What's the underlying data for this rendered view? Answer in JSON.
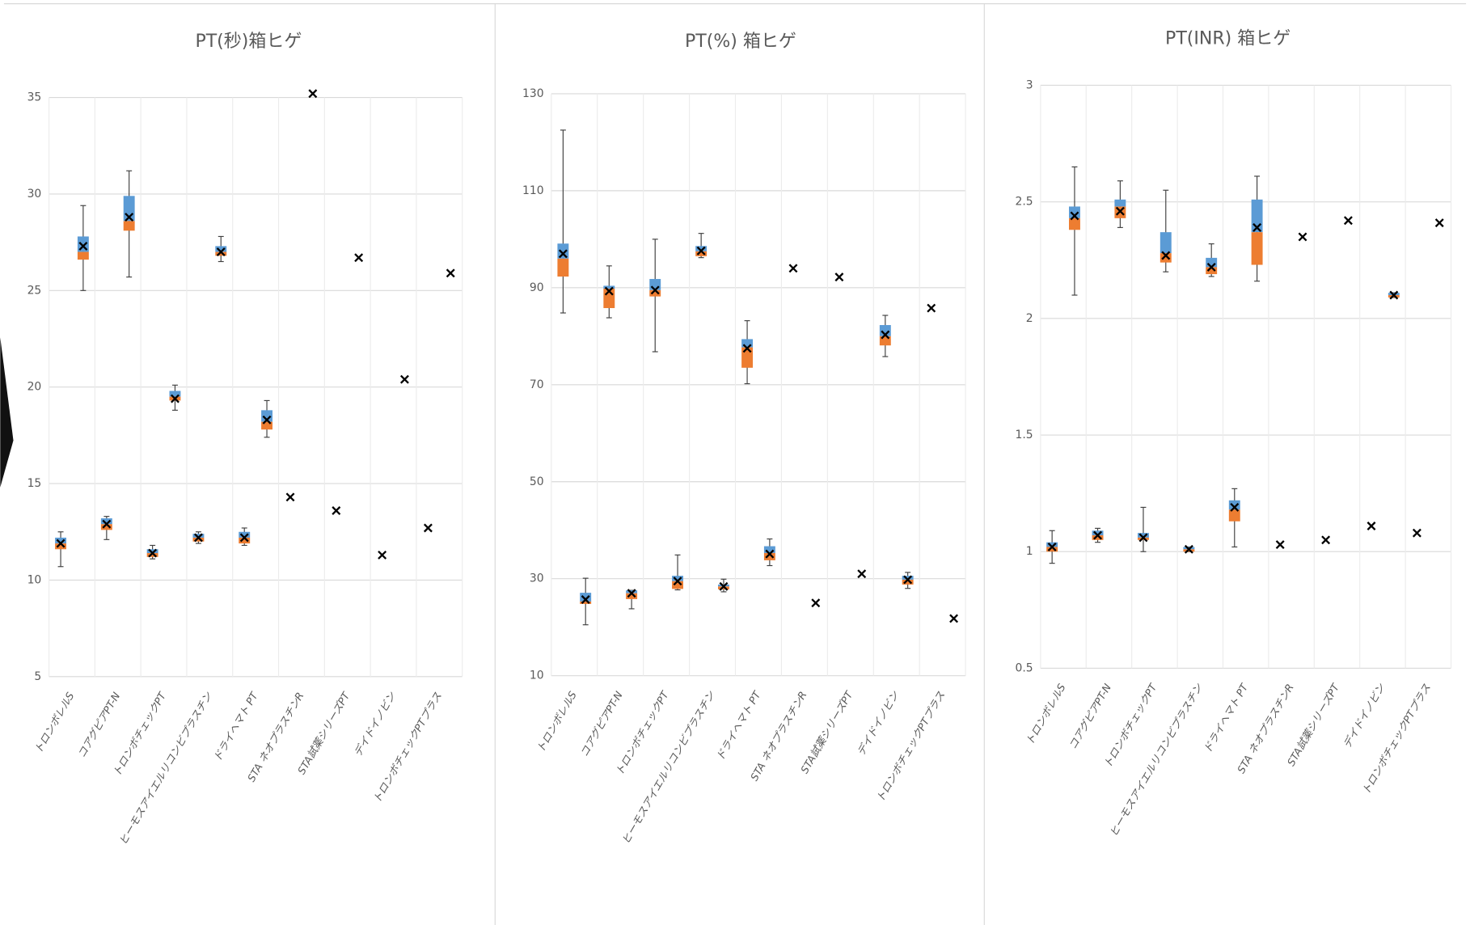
{
  "chart_data": [
    {
      "type": "box",
      "title": "PT(秒)箱ヒゲ",
      "grid": true,
      "upper_color": "#5b9bd5",
      "lower_color": "#ed7d31",
      "whisker_color": "#404040",
      "mean_color": "#000000",
      "categories": [
        "トロンボレルS",
        "コアグピアPT-N",
        "トロンボチェックPT",
        "ヒーモスアイエルリコンビプラスチン",
        "ドライヘマト PT",
        "STA ネオプラスチンR",
        "STA試薬シリーズPT",
        "デイドイノビン",
        "トロンボチェックPTプラス"
      ],
      "ylim": [
        5,
        35
      ],
      "yticks": [
        5,
        10,
        15,
        20,
        25,
        30,
        35
      ],
      "series": [
        {
          "max": [
            12.5,
            13.3,
            11.8,
            12.5,
            12.7,
            null,
            null,
            null,
            null
          ],
          "q3": [
            12.2,
            13.2,
            11.6,
            12.4,
            12.5,
            null,
            null,
            null,
            null
          ],
          "median": [
            11.9,
            12.9,
            11.4,
            12.2,
            12.2,
            null,
            null,
            null,
            null
          ],
          "q1": [
            11.6,
            12.6,
            11.2,
            12.0,
            11.9,
            null,
            null,
            null,
            null
          ],
          "min": [
            10.7,
            12.1,
            11.1,
            11.9,
            11.8,
            null,
            null,
            null,
            null
          ],
          "mean": [
            11.9,
            12.9,
            11.4,
            12.2,
            12.2,
            14.3,
            13.6,
            11.3,
            12.7
          ]
        },
        {
          "max": [
            29.4,
            31.2,
            20.1,
            27.8,
            19.3,
            null,
            null,
            null,
            null
          ],
          "q3": [
            27.8,
            29.9,
            19.8,
            27.3,
            18.8,
            null,
            null,
            null,
            null
          ],
          "median": [
            27.0,
            28.6,
            19.5,
            27.0,
            18.2,
            null,
            null,
            null,
            null
          ],
          "q1": [
            26.6,
            28.1,
            19.3,
            26.8,
            17.8,
            null,
            null,
            null,
            null
          ],
          "min": [
            25.0,
            25.7,
            18.8,
            26.5,
            17.4,
            null,
            null,
            null,
            null
          ],
          "mean": [
            27.3,
            28.8,
            19.4,
            27.0,
            18.3,
            35.2,
            26.7,
            20.4,
            25.9
          ]
        }
      ]
    },
    {
      "type": "box",
      "title": "PT(%)  箱ヒゲ",
      "grid": true,
      "upper_color": "#5b9bd5",
      "lower_color": "#ed7d31",
      "whisker_color": "#404040",
      "mean_color": "#000000",
      "categories": [
        "トロンボレルS",
        "コアグピアPT-N",
        "トロンボチェックPT",
        "ヒーモスアイエルリコンビプラスチン",
        "ドライヘマト PT",
        "STA ネオプラスチンR",
        "STA試薬シリーズPT",
        "デイドイノビン",
        "トロンボチェックPTプラス"
      ],
      "ylim": [
        10,
        130
      ],
      "yticks": [
        10,
        30,
        50,
        70,
        90,
        110,
        130
      ],
      "series": [
        {
          "max": [
            122.5,
            94.5,
            100,
            101.2,
            83.2,
            null,
            null,
            84.3,
            null
          ],
          "q3": [
            99.1,
            90.4,
            91.8,
            98.6,
            79.4,
            null,
            null,
            82.3,
            null
          ],
          "median": [
            96,
            89.8,
            89.5,
            97.5,
            77.7,
            null,
            null,
            80,
            null
          ],
          "q1": [
            92.3,
            85.8,
            88.2,
            96.5,
            73.5,
            null,
            null,
            78.1,
            null
          ],
          "min": [
            84.8,
            83.8,
            76.8,
            96.2,
            70.2,
            null,
            null,
            75.8,
            null
          ],
          "mean": [
            97,
            89.3,
            89.5,
            97.6,
            77.5,
            94,
            92.2,
            80.3,
            85.8
          ]
        },
        {
          "max": [
            30.1,
            27.6,
            34.9,
            29.9,
            38.2,
            null,
            null,
            31.3,
            null
          ],
          "q3": [
            27.1,
            27.6,
            30.6,
            28.8,
            36.7,
            null,
            null,
            30.6,
            null
          ],
          "median": [
            25.3,
            27,
            29.5,
            28.4,
            35.3,
            null,
            null,
            29.8,
            null
          ],
          "q1": [
            24.8,
            25.8,
            27.9,
            27.8,
            33.8,
            null,
            null,
            28.8,
            null
          ],
          "min": [
            20.5,
            23.8,
            27.7,
            27.3,
            32.7,
            null,
            null,
            28.0,
            null
          ],
          "mean": [
            25.7,
            27.0,
            29.5,
            28.4,
            35.1,
            25.0,
            31.0,
            29.8,
            21.8
          ]
        }
      ]
    },
    {
      "type": "box",
      "title": "PT(INR)  箱ヒゲ",
      "grid": true,
      "upper_color": "#5b9bd5",
      "lower_color": "#ed7d31",
      "whisker_color": "#404040",
      "mean_color": "#000000",
      "categories": [
        "トロンボレルS",
        "コアグピアPT-N",
        "トロンボチェックPT",
        "ヒーモスアイエルリコンビプラスチン",
        "ドライヘマト PT",
        "STA ネオプラスチンR",
        "STA試薬シリーズPT",
        "デイドイノビン",
        "トロンボチェックPTプラス"
      ],
      "ylim": [
        0.5,
        3
      ],
      "yticks": [
        0.5,
        1,
        1.5,
        2,
        2.5,
        3
      ],
      "series": [
        {
          "max": [
            1.09,
            1.1,
            1.19,
            1.02,
            1.27,
            null,
            null,
            null,
            null
          ],
          "q3": [
            1.04,
            1.09,
            1.08,
            1.02,
            1.22,
            null,
            null,
            null,
            null
          ],
          "median": [
            1.02,
            1.07,
            1.06,
            1.01,
            1.18,
            null,
            null,
            null,
            null
          ],
          "q1": [
            1.0,
            1.05,
            1.05,
            1.0,
            1.13,
            null,
            null,
            null,
            null
          ],
          "min": [
            0.95,
            1.04,
            1.0,
            1.0,
            1.02,
            null,
            null,
            null,
            null
          ],
          "mean": [
            1.02,
            1.07,
            1.06,
            1.01,
            1.19,
            1.03,
            1.05,
            1.11,
            1.08
          ]
        },
        {
          "max": [
            2.65,
            2.59,
            2.55,
            2.32,
            2.61,
            null,
            null,
            2.11,
            null
          ],
          "q3": [
            2.48,
            2.51,
            2.37,
            2.26,
            2.51,
            null,
            null,
            2.11,
            null
          ],
          "median": [
            2.43,
            2.48,
            2.28,
            2.22,
            2.37,
            null,
            null,
            2.1,
            null
          ],
          "q1": [
            2.38,
            2.43,
            2.24,
            2.19,
            2.23,
            null,
            null,
            2.09,
            null
          ],
          "min": [
            2.1,
            2.39,
            2.2,
            2.18,
            2.16,
            null,
            null,
            2.09,
            null
          ],
          "mean": [
            2.44,
            2.46,
            2.27,
            2.22,
            2.39,
            2.35,
            2.42,
            2.1,
            2.41
          ]
        }
      ]
    }
  ]
}
